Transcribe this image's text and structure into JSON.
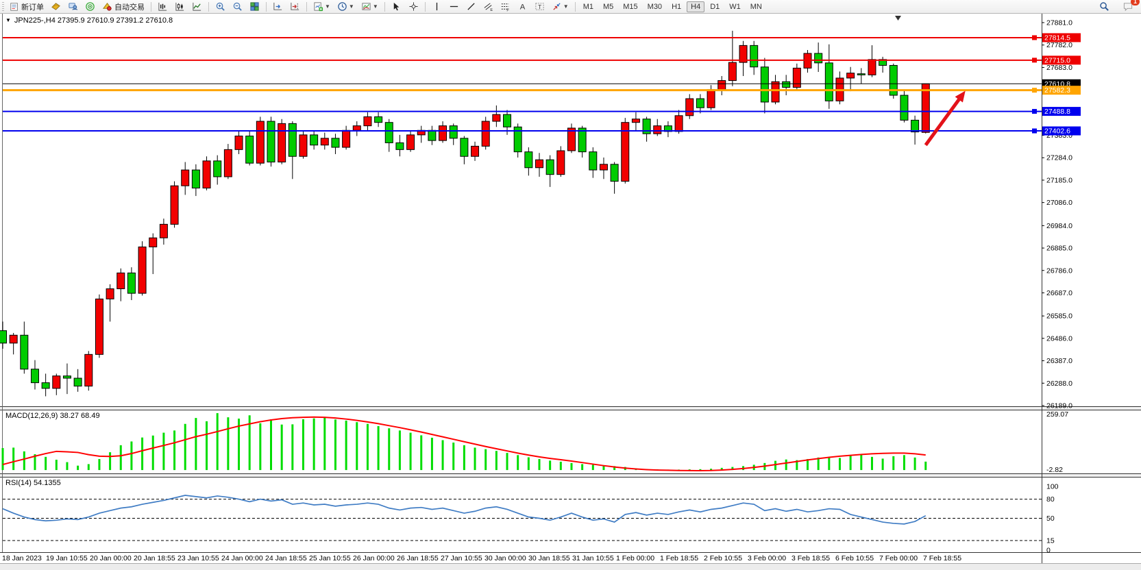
{
  "toolbar": {
    "new_order": "新订单",
    "autotrading": "自动交易",
    "timeframes": [
      "M1",
      "M5",
      "M15",
      "M30",
      "H1",
      "H4",
      "D1",
      "W1",
      "MN"
    ],
    "active_timeframe": "H4",
    "notification_badge": "1"
  },
  "chart": {
    "header": "JPN225-,H4  27395.9 27610.9 27391.2 27610.8",
    "macd_label": "MACD(12,26,9) 38.27 68.49",
    "rsi_label": "RSI(14) 54.1355"
  },
  "chart_data": {
    "type": "candlestick",
    "symbol": "JPN225-",
    "timeframe": "H4",
    "ohlc_current": {
      "open": 27395.9,
      "high": 27610.9,
      "low": 27391.2,
      "close": 27610.8
    },
    "bull_color": "#f20000",
    "bear_color": "#00cc00",
    "price_axis_ticks": [
      "27881.0",
      "27782.0",
      "27683.0",
      "27383.0",
      "27284.0",
      "27185.0",
      "27086.0",
      "26984.0",
      "26885.0",
      "26786.0",
      "26687.0",
      "26585.0",
      "26486.0",
      "26387.0",
      "26288.0",
      "26189.0"
    ],
    "price_levels": [
      {
        "price": 27814.5,
        "label": "27814.5",
        "color": "#ee0000",
        "width": 2,
        "current": false
      },
      {
        "price": 27715.0,
        "label": "27715.0",
        "color": "#ee0000",
        "width": 2,
        "current": false
      },
      {
        "price": 27610.8,
        "label": "27610.8",
        "color": "#000000",
        "width": 1,
        "current": true
      },
      {
        "price": 27582.3,
        "label": "27582.3",
        "color": "#ffa500",
        "width": 3,
        "current": false
      },
      {
        "price": 27488.8,
        "label": "27488.8",
        "color": "#0000ee",
        "width": 2,
        "current": false
      },
      {
        "price": 27402.6,
        "label": "27402.6",
        "color": "#0000ee",
        "width": 2,
        "current": false
      }
    ],
    "x_labels": [
      "18 Jan 2023",
      "19 Jan 10:55",
      "20 Jan 00:00",
      "20 Jan 18:55",
      "23 Jan 10:55",
      "24 Jan 00:00",
      "24 Jan 18:55",
      "25 Jan 10:55",
      "26 Jan 00:00",
      "26 Jan 18:55",
      "27 Jan 10:55",
      "30 Jan 00:00",
      "30 Jan 18:55",
      "31 Jan 10:55",
      "1 Feb 00:00",
      "1 Feb 18:55",
      "2 Feb 10:55",
      "3 Feb 00:00",
      "3 Feb 18:55",
      "6 Feb 10:55",
      "7 Feb 00:00",
      "7 Feb 18:55"
    ],
    "candles": [
      [
        26520,
        26560,
        26440,
        26465
      ],
      [
        26465,
        26510,
        26415,
        26500
      ],
      [
        26500,
        26560,
        26330,
        26350
      ],
      [
        26350,
        26390,
        26260,
        26290
      ],
      [
        26290,
        26330,
        26230,
        26265
      ],
      [
        26265,
        26330,
        26235,
        26320
      ],
      [
        26320,
        26375,
        26240,
        26310
      ],
      [
        26310,
        26350,
        26250,
        26275
      ],
      [
        26275,
        26430,
        26255,
        26415
      ],
      [
        26415,
        26680,
        26400,
        26660
      ],
      [
        26660,
        26725,
        26560,
        26705
      ],
      [
        26705,
        26795,
        26650,
        26775
      ],
      [
        26775,
        26800,
        26655,
        26685
      ],
      [
        26685,
        26915,
        26675,
        26890
      ],
      [
        26890,
        26950,
        26770,
        26930
      ],
      [
        26930,
        27015,
        26900,
        26990
      ],
      [
        26990,
        27180,
        26975,
        27160
      ],
      [
        27160,
        27265,
        27120,
        27230
      ],
      [
        27230,
        27255,
        27115,
        27150
      ],
      [
        27150,
        27290,
        27140,
        27270
      ],
      [
        27270,
        27295,
        27165,
        27200
      ],
      [
        27200,
        27345,
        27190,
        27320
      ],
      [
        27320,
        27405,
        27300,
        27380
      ],
      [
        27380,
        27405,
        27250,
        27260
      ],
      [
        27260,
        27465,
        27250,
        27445
      ],
      [
        27445,
        27465,
        27245,
        27265
      ],
      [
        27265,
        27455,
        27255,
        27435
      ],
      [
        27435,
        27445,
        27190,
        27290
      ],
      [
        27290,
        27405,
        27280,
        27385
      ],
      [
        27385,
        27405,
        27320,
        27340
      ],
      [
        27340,
        27395,
        27320,
        27370
      ],
      [
        27370,
        27390,
        27300,
        27330
      ],
      [
        27330,
        27425,
        27320,
        27405
      ],
      [
        27405,
        27445,
        27380,
        27425
      ],
      [
        27425,
        27485,
        27400,
        27465
      ],
      [
        27465,
        27485,
        27420,
        27440
      ],
      [
        27440,
        27455,
        27310,
        27350
      ],
      [
        27350,
        27385,
        27290,
        27320
      ],
      [
        27320,
        27405,
        27310,
        27385
      ],
      [
        27385,
        27425,
        27350,
        27405
      ],
      [
        27405,
        27425,
        27340,
        27360
      ],
      [
        27360,
        27445,
        27350,
        27425
      ],
      [
        27425,
        27435,
        27340,
        27370
      ],
      [
        27370,
        27380,
        27255,
        27290
      ],
      [
        27290,
        27355,
        27270,
        27335
      ],
      [
        27335,
        27465,
        27320,
        27445
      ],
      [
        27445,
        27515,
        27420,
        27475
      ],
      [
        27475,
        27495,
        27385,
        27420
      ],
      [
        27420,
        27435,
        27285,
        27310
      ],
      [
        27310,
        27330,
        27205,
        27240
      ],
      [
        27240,
        27305,
        27200,
        27275
      ],
      [
        27275,
        27295,
        27155,
        27210
      ],
      [
        27210,
        27335,
        27200,
        27315
      ],
      [
        27315,
        27435,
        27305,
        27415
      ],
      [
        27415,
        27425,
        27285,
        27310
      ],
      [
        27310,
        27330,
        27195,
        27230
      ],
      [
        27230,
        27285,
        27190,
        27255
      ],
      [
        27255,
        27265,
        27125,
        27180
      ],
      [
        27180,
        27460,
        27170,
        27440
      ],
      [
        27440,
        27485,
        27400,
        27455
      ],
      [
        27455,
        27465,
        27355,
        27390
      ],
      [
        27390,
        27455,
        27380,
        27425
      ],
      [
        27425,
        27445,
        27375,
        27400
      ],
      [
        27400,
        27495,
        27390,
        27470
      ],
      [
        27470,
        27565,
        27455,
        27545
      ],
      [
        27545,
        27565,
        27480,
        27505
      ],
      [
        27505,
        27605,
        27495,
        27585
      ],
      [
        27585,
        27645,
        27560,
        27625
      ],
      [
        27625,
        27845,
        27600,
        27705
      ],
      [
        27705,
        27800,
        27645,
        27780
      ],
      [
        27780,
        27800,
        27650,
        27685
      ],
      [
        27685,
        27725,
        27480,
        27530
      ],
      [
        27530,
        27650,
        27520,
        27620
      ],
      [
        27620,
        27650,
        27560,
        27595
      ],
      [
        27595,
        27700,
        27585,
        27680
      ],
      [
        27680,
        27760,
        27660,
        27745
      ],
      [
        27745,
        27793,
        27663,
        27703
      ],
      [
        27703,
        27785,
        27500,
        27535
      ],
      [
        27535,
        27665,
        27520,
        27636
      ],
      [
        27636,
        27685,
        27578,
        27658
      ],
      [
        27655,
        27680,
        27610,
        27650
      ],
      [
        27650,
        27781,
        27640,
        27718
      ],
      [
        27718,
        27730,
        27660,
        27692
      ],
      [
        27692,
        27700,
        27545,
        27560
      ],
      [
        27560,
        27580,
        27440,
        27450
      ],
      [
        27450,
        27470,
        27342,
        27398
      ],
      [
        27395.9,
        27610.9,
        27391.2,
        27610.8
      ]
    ],
    "macd": {
      "params": "12,26,9",
      "main_value": 38.27,
      "signal_value": 68.49,
      "axis_max": "259.07",
      "axis_min": "-2.82",
      "hist_color": "#00dd00",
      "signal_color": "#ff0000",
      "histogram": [
        100,
        102,
        85,
        72,
        60,
        47,
        36,
        20,
        27,
        50,
        81,
        113,
        130,
        148,
        157,
        170,
        180,
        210,
        237,
        222,
        259,
        240,
        234,
        249,
        213,
        231,
        207,
        208,
        231,
        235,
        240,
        230,
        225,
        218,
        210,
        200,
        190,
        180,
        170,
        158,
        147,
        136,
        125,
        113,
        102,
        95,
        87,
        78,
        68,
        58,
        50,
        43,
        38,
        32,
        27,
        24,
        21,
        18,
        14,
        8,
        5,
        3,
        2,
        2,
        3,
        4,
        6,
        10,
        14,
        18,
        24,
        32,
        42,
        48,
        45,
        50,
        57,
        60,
        55,
        65,
        70,
        60,
        52,
        63,
        68,
        57,
        38.27
      ],
      "signal": [
        25,
        38,
        50,
        63,
        75,
        85,
        83,
        80,
        70,
        63,
        62,
        65,
        75,
        88,
        100,
        112,
        124,
        138,
        152,
        163,
        175,
        188,
        200,
        210,
        220,
        228,
        234,
        238,
        240,
        241,
        240,
        237,
        232,
        226,
        219,
        211,
        202,
        193,
        183,
        173,
        162,
        151,
        140,
        129,
        118,
        107,
        97,
        87,
        77,
        68,
        60,
        53,
        47,
        41,
        34,
        27,
        20,
        14,
        9,
        5,
        2,
        0,
        -1,
        -2,
        -2.5,
        -2.8,
        -2,
        0,
        3,
        7,
        12,
        18,
        25,
        32,
        39,
        46,
        52,
        58,
        63,
        67,
        71,
        74,
        76,
        77,
        77,
        74,
        68.49
      ]
    },
    "rsi": {
      "period": 14,
      "value": 54.1355,
      "axis_labels": [
        "100",
        "80",
        "50",
        "15",
        "0"
      ],
      "dashed_levels": [
        80,
        50,
        15
      ],
      "color": "#3f7cc4",
      "values": [
        65,
        58,
        52,
        48,
        46,
        47,
        49,
        48,
        52,
        58,
        62,
        66,
        68,
        72,
        75,
        78,
        82,
        86,
        84,
        82,
        85,
        83,
        80,
        76,
        80,
        77,
        79,
        72,
        74,
        71,
        72,
        69,
        71,
        72,
        74,
        72,
        66,
        63,
        66,
        67,
        64,
        66,
        62,
        58,
        61,
        66,
        68,
        64,
        58,
        52,
        50,
        47,
        52,
        58,
        52,
        47,
        49,
        44,
        56,
        59,
        55,
        58,
        56,
        60,
        63,
        60,
        64,
        66,
        70,
        74,
        72,
        62,
        65,
        61,
        64,
        60,
        62,
        65,
        64,
        56,
        52,
        48,
        44,
        42,
        41,
        45,
        54.1
      ]
    },
    "annotation_arrow": {
      "from_index": 86,
      "from_price": 27340,
      "to_index": 89.7,
      "to_price": 27580,
      "color": "#e31219"
    }
  }
}
